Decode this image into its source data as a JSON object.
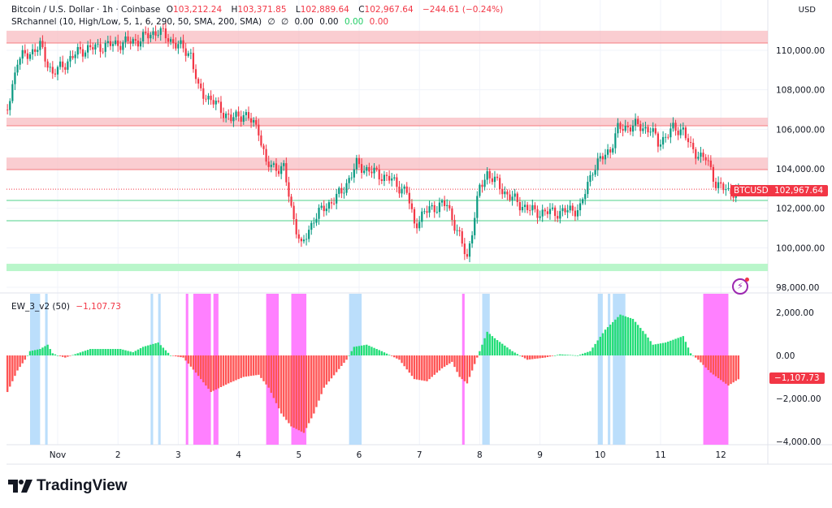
{
  "header": {
    "symbol": "Bitcoin / U.S. Dollar · 1h · Coinbase",
    "open_label": "O",
    "open": "103,212.24",
    "high_label": "H",
    "high": "103,371.85",
    "low_label": "L",
    "low": "102,889.64",
    "close_label": "C",
    "close": "102,967.64",
    "change": "−244.61 (−0.24%)",
    "currency": "USD"
  },
  "indicator_sr": {
    "label": "SRchannel (10, High/Low, 5, 1, 6, 290, 50, SMA, 200, SMA)",
    "v1": "∅",
    "v2": "∅",
    "v3": "0.00",
    "v4": "0.00",
    "v5": "0.00",
    "v6": "0.00"
  },
  "indicator_ew": {
    "label": "EW_3_v2 (50)",
    "value": "−1,107.73"
  },
  "price_tag": {
    "symbol": "BTCUSD",
    "price": "102,967.64"
  },
  "brand": "TradingView",
  "colors": {
    "up": "#089981",
    "down": "#f23645",
    "hist_up": "#22dd77",
    "hist_down": "#ff5555",
    "band_blue": "#bbdefb",
    "band_magenta": "#ff80ff",
    "resistance": "#f8b8be",
    "support": "#b9f6ca"
  },
  "chart_data": [
    {
      "type": "candlestick",
      "timeframe": "1h",
      "ylim": [
        97500,
        111700
      ],
      "y_ticks": [
        "110,000.00",
        "108,000.00",
        "106,000.00",
        "104,000.00",
        "102,000.00",
        "100,000.00",
        "98,000.00"
      ],
      "y_tick_values": [
        110000,
        108000,
        106000,
        104000,
        102000,
        100000,
        98000
      ],
      "x_ticks": [
        {
          "t": "11-01 00:00",
          "label": "Nov"
        },
        {
          "t": "11-02 00:00",
          "label": "2"
        },
        {
          "t": "11-03 00:00",
          "label": "3"
        },
        {
          "t": "11-04 00:00",
          "label": "4"
        },
        {
          "t": "11-05 00:00",
          "label": "5"
        },
        {
          "t": "11-06 00:00",
          "label": "6"
        },
        {
          "t": "11-07 00:00",
          "label": "7"
        },
        {
          "t": "11-08 00:00",
          "label": "8"
        },
        {
          "t": "11-09 00:00",
          "label": "9"
        },
        {
          "t": "11-10 00:00",
          "label": "10"
        },
        {
          "t": "11-11 00:00",
          "label": "11"
        },
        {
          "t": "11-12 00:00",
          "label": "12"
        }
      ],
      "close_path": [
        [
          "10-31 04:00",
          107000
        ],
        [
          "10-31 08:00",
          109500
        ],
        [
          "10-31 17:00",
          110200
        ],
        [
          "10-31 22:00",
          108800
        ],
        [
          "11-01 09:00",
          110000
        ],
        [
          "11-01 22:00",
          110300
        ],
        [
          "11-02 08:00",
          110500
        ],
        [
          "11-02 16:00",
          111000
        ],
        [
          "11-02 21:00",
          110500
        ],
        [
          "11-03 05:00",
          109800
        ],
        [
          "11-03 08:00",
          108000
        ],
        [
          "11-03 13:00",
          107500
        ],
        [
          "11-03 21:00",
          106500
        ],
        [
          "11-04 02:00",
          106800
        ],
        [
          "11-04 08:00",
          106000
        ],
        [
          "11-04 11:00",
          104200
        ],
        [
          "11-04 18:00",
          104000
        ],
        [
          "11-04 21:00",
          102000
        ],
        [
          "11-05 01:00",
          100000
        ],
        [
          "11-05 06:00",
          101500
        ],
        [
          "11-05 10:00",
          102000
        ],
        [
          "11-05 17:00",
          102800
        ],
        [
          "11-05 23:00",
          104200
        ],
        [
          "11-06 06:00",
          103800
        ],
        [
          "11-06 12:00",
          103500
        ],
        [
          "11-06 19:00",
          102800
        ],
        [
          "11-06 22:00",
          101200
        ],
        [
          "11-07 04:00",
          102000
        ],
        [
          "11-07 11:00",
          102200
        ],
        [
          "11-07 16:00",
          100500
        ],
        [
          "11-07 19:00",
          99500
        ],
        [
          "11-08 00:00",
          103000
        ],
        [
          "11-08 03:00",
          103800
        ],
        [
          "11-08 10:00",
          102800
        ],
        [
          "11-08 16:00",
          102200
        ],
        [
          "11-08 22:00",
          101800
        ],
        [
          "11-09 08:00",
          101800
        ],
        [
          "11-09 16:00",
          102000
        ],
        [
          "11-09 21:00",
          104000
        ],
        [
          "11-10 04:00",
          105000
        ],
        [
          "11-10 07:00",
          106000
        ],
        [
          "11-10 13:00",
          106200
        ],
        [
          "11-10 20:00",
          106000
        ],
        [
          "11-10 23:00",
          105300
        ],
        [
          "11-11 05:00",
          106000
        ],
        [
          "11-11 09:00",
          106000
        ],
        [
          "11-11 12:00",
          105000
        ],
        [
          "11-11 18:00",
          104500
        ],
        [
          "11-11 22:00",
          103300
        ],
        [
          "11-12 03:00",
          102800
        ],
        [
          "11-12 07:00",
          102967.64
        ]
      ],
      "last_price": 102967.64,
      "resistance_zones": [
        [
          110370,
          110990
        ],
        [
          106180,
          106590
        ],
        [
          103960,
          104570
        ]
      ],
      "support_lines": [
        102400,
        101370
      ],
      "support_zones": [
        [
          98820,
          99190
        ]
      ]
    },
    {
      "type": "histogram",
      "name": "EW_3_v2 (50)",
      "ylim": [
        -4300,
        3000
      ],
      "y_ticks": [
        "2,000.00",
        "0.00",
        "−2,000.00",
        "−4,000.00"
      ],
      "y_tick_values": [
        2000,
        0,
        -2000,
        -4000
      ],
      "last_value": -1107.73,
      "values": [
        [
          "10-31 04:00",
          -1700
        ],
        [
          "10-31 08:00",
          -700
        ],
        [
          "10-31 11:00",
          -200
        ],
        [
          "10-31 13:00",
          200
        ],
        [
          "10-31 17:00",
          300
        ],
        [
          "10-31 20:00",
          500
        ],
        [
          "10-31 22:00",
          100
        ],
        [
          "11-01 00:00",
          0
        ],
        [
          "11-01 03:00",
          -100
        ],
        [
          "11-01 08:00",
          100
        ],
        [
          "11-01 13:00",
          300
        ],
        [
          "11-02 01:00",
          300
        ],
        [
          "11-02 06:00",
          150
        ],
        [
          "11-02 10:00",
          400
        ],
        [
          "11-02 16:00",
          600
        ],
        [
          "11-02 21:00",
          0
        ],
        [
          "11-03 02:00",
          -100
        ],
        [
          "11-03 07:00",
          -800
        ],
        [
          "11-03 13:00",
          -1700
        ],
        [
          "11-03 20:00",
          -1300
        ],
        [
          "11-04 02:00",
          -1000
        ],
        [
          "11-04 08:00",
          -900
        ],
        [
          "11-04 12:00",
          -1500
        ],
        [
          "11-04 17:00",
          -2700
        ],
        [
          "11-04 21:00",
          -3300
        ],
        [
          "11-05 02:00",
          -3600
        ],
        [
          "11-05 06:00",
          -2700
        ],
        [
          "11-05 10:00",
          -1500
        ],
        [
          "11-05 19:00",
          -200
        ],
        [
          "11-05 22:00",
          400
        ],
        [
          "11-06 03:00",
          500
        ],
        [
          "11-06 09:00",
          200
        ],
        [
          "11-06 16:00",
          -200
        ],
        [
          "11-06 22:00",
          -1100
        ],
        [
          "11-07 03:00",
          -1200
        ],
        [
          "11-07 09:00",
          -600
        ],
        [
          "11-07 13:00",
          -300
        ],
        [
          "11-07 16:00",
          -1000
        ],
        [
          "11-07 19:00",
          -1300
        ],
        [
          "11-08 00:00",
          200
        ],
        [
          "11-08 03:00",
          1100
        ],
        [
          "11-08 06:00",
          800
        ],
        [
          "11-08 13:00",
          200
        ],
        [
          "11-08 19:00",
          -200
        ],
        [
          "11-09 02:00",
          -100
        ],
        [
          "11-09 08:00",
          50
        ],
        [
          "11-09 15:00",
          0
        ],
        [
          "11-09 20:00",
          200
        ],
        [
          "11-10 02:00",
          1200
        ],
        [
          "11-10 08:00",
          1900
        ],
        [
          "11-10 13:00",
          1700
        ],
        [
          "11-10 18:00",
          1000
        ],
        [
          "11-10 21:00",
          500
        ],
        [
          "11-11 02:00",
          600
        ],
        [
          "11-11 09:00",
          900
        ],
        [
          "11-11 12:00",
          100
        ],
        [
          "11-11 15:00",
          -200
        ],
        [
          "11-11 20:00",
          -800
        ],
        [
          "11-12 03:00",
          -1400
        ],
        [
          "11-12 07:00",
          -1107.73
        ]
      ],
      "bands_blue": [
        [
          "10-31 13:00",
          "10-31 17:00"
        ],
        [
          "10-31 19:00",
          "10-31 20:00"
        ],
        [
          "11-02 13:00",
          "11-02 14:00"
        ],
        [
          "11-02 16:00",
          "11-02 17:00"
        ],
        [
          "11-05 20:00",
          "11-06 01:00"
        ],
        [
          "11-08 01:00",
          "11-08 04:00"
        ],
        [
          "11-09 23:00",
          "11-10 01:00"
        ],
        [
          "11-10 03:00",
          "11-10 04:00"
        ],
        [
          "11-10 05:00",
          "11-10 10:00"
        ]
      ],
      "bands_magenta": [
        [
          "11-03 03:00",
          "11-03 04:00"
        ],
        [
          "11-03 06:00",
          "11-03 13:00"
        ],
        [
          "11-03 14:00",
          "11-03 16:00"
        ],
        [
          "11-04 11:00",
          "11-04 16:00"
        ],
        [
          "11-04 21:00",
          "11-05 03:00"
        ],
        [
          "11-07 17:00",
          "11-07 18:00"
        ],
        [
          "11-11 17:00",
          "11-12 03:00"
        ]
      ]
    }
  ]
}
